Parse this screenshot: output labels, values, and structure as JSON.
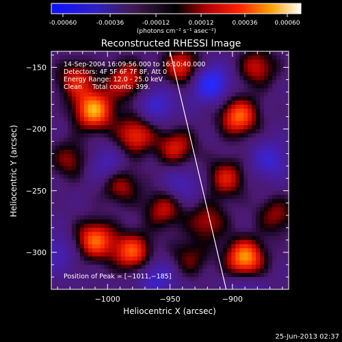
{
  "colorbar": {
    "tick_labels": [
      "-0.00060",
      "-0.00036",
      "-0.00012",
      "0.00012",
      "0.00036",
      "0.00060"
    ],
    "unit_label": "(photons cm⁻² s⁻¹ asec⁻²)",
    "range": [
      -0.0006,
      0.0006
    ]
  },
  "chart_data": {
    "type": "heatmap",
    "title": "Reconstructed RHESSI Image",
    "xlabel": "Heliocentric X (arcsec)",
    "ylabel": "Heliocentric Y (arcsec)",
    "xlim": [
      -1045,
      -855
    ],
    "ylim": [
      -330,
      -137
    ],
    "x_ticks": [
      -1000,
      -950,
      -900
    ],
    "x_tick_labels": [
      "−1000",
      "−950",
      "−900"
    ],
    "y_ticks": [
      -150,
      -200,
      -250,
      -300
    ],
    "y_tick_labels": [
      "−150",
      "−200",
      "−250",
      "−300"
    ],
    "info_lines": [
      "14-Sep-2004 16:09:56.000 to 16:10:40.000",
      "Detectors: 4F 5F 6F 7F 8F, Att 0",
      "Energy Range: 12.0 - 25.0 keV",
      "Clean     Total counts: 399."
    ],
    "peak_label": "Position of Peak = [−1011,−185]",
    "peak": [
      -1011,
      -185
    ],
    "limb_line": [
      [
        -950,
        -137
      ],
      [
        -905,
        -330
      ]
    ],
    "blobs": [
      {
        "x": -1011,
        "y": -185,
        "amp": 1.0
      },
      {
        "x": -1025,
        "y": -160,
        "amp": 0.6
      },
      {
        "x": -985,
        "y": -160,
        "amp": 0.65
      },
      {
        "x": -978,
        "y": -205,
        "amp": 0.7
      },
      {
        "x": -940,
        "y": -150,
        "amp": 0.7
      },
      {
        "x": -945,
        "y": -215,
        "amp": 0.6
      },
      {
        "x": -895,
        "y": -190,
        "amp": 0.85
      },
      {
        "x": -880,
        "y": -150,
        "amp": 0.55
      },
      {
        "x": -905,
        "y": -240,
        "amp": 0.6
      },
      {
        "x": -920,
        "y": -275,
        "amp": 0.5
      },
      {
        "x": -990,
        "y": -245,
        "amp": 0.55
      },
      {
        "x": -1010,
        "y": -290,
        "amp": 0.85
      },
      {
        "x": -980,
        "y": -300,
        "amp": 0.8
      },
      {
        "x": -955,
        "y": -265,
        "amp": 0.55
      },
      {
        "x": -890,
        "y": -305,
        "amp": 1.0
      },
      {
        "x": -935,
        "y": -305,
        "amp": 0.4
      },
      {
        "x": -1030,
        "y": -225,
        "amp": 0.45
      },
      {
        "x": -865,
        "y": -270,
        "amp": 0.45
      },
      {
        "x": -960,
        "y": -180,
        "amp": -0.45
      },
      {
        "x": -918,
        "y": -163,
        "amp": -0.75
      },
      {
        "x": -1000,
        "y": -230,
        "amp": -0.4
      },
      {
        "x": -1040,
        "y": -300,
        "amp": -0.35
      },
      {
        "x": -960,
        "y": -320,
        "amp": -0.45
      },
      {
        "x": -870,
        "y": -225,
        "amp": -0.45
      },
      {
        "x": -940,
        "y": -245,
        "amp": -0.35
      },
      {
        "x": -890,
        "y": -330,
        "amp": -0.3
      }
    ]
  },
  "footer": {
    "timestamp": "25-Jun-2013 02:37"
  }
}
